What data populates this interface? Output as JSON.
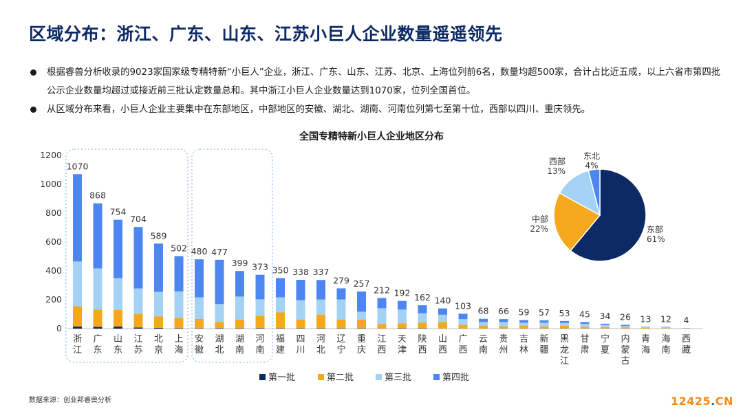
{
  "title": "区域分布：浙江、广东、山东、江苏小巨人企业数量遥遥领先",
  "bullets": [
    "根据睿兽分析收录的9023家国家级专精特新“小巨人”企业，浙江、广东、山东、江苏、北京、上海位列前6名，数量均超500家，合计占比近五成，以上六省市第四批公示企业数量均超过或接近前三批认定数量总和。其中浙江小巨人企业数量达到1070家，位列全国首位。",
    "从区域分布来看，小巨人企业主要集中在东部地区，中部地区的安徽、湖北、湖南、河南位列第七至第十位，西部以四川、重庆领先。"
  ],
  "source": "数据来源：创业邦睿兽分析",
  "watermark": {
    "num": "12425",
    "dot": ".",
    "tld": "CN"
  },
  "chart_data": [
    {
      "type": "bar",
      "stacked": true,
      "title": "全国专精特新小巨人企业地区分布",
      "categories": [
        "浙江",
        "广东",
        "山东",
        "江苏",
        "北京",
        "上海",
        "安徽",
        "湖北",
        "湖南",
        "河南",
        "福建",
        "四川",
        "河北",
        "辽宁",
        "重庆",
        "江西",
        "天津",
        "陕西",
        "山西",
        "广西",
        "云南",
        "贵州",
        "吉林",
        "新疆",
        "黑龙江",
        "甘肃",
        "宁夏",
        "内蒙古",
        "青海",
        "海南",
        "西藏"
      ],
      "totals": [
        1070,
        868,
        754,
        704,
        589,
        502,
        480,
        477,
        399,
        373,
        350,
        338,
        337,
        279,
        257,
        212,
        192,
        162,
        140,
        103,
        68,
        66,
        59,
        57,
        53,
        45,
        34,
        26,
        13,
        12,
        4
      ],
      "series": [
        {
          "name": "第一批",
          "color": "#0d2a66",
          "values": [
            15,
            12,
            15,
            8,
            5,
            3,
            2,
            3,
            2,
            3,
            2,
            2,
            2,
            2,
            2,
            1,
            2,
            2,
            1,
            1,
            1,
            1,
            1,
            1,
            1,
            1,
            1,
            1,
            0,
            0,
            0
          ]
        },
        {
          "name": "第二批",
          "color": "#f5a81c",
          "values": [
            140,
            120,
            115,
            95,
            80,
            70,
            65,
            42,
            60,
            85,
            110,
            60,
            95,
            60,
            60,
            30,
            35,
            40,
            45,
            25,
            20,
            15,
            20,
            15,
            18,
            12,
            10,
            8,
            5,
            4,
            2
          ]
        },
        {
          "name": "第三批",
          "color": "#a3d2f5",
          "values": [
            310,
            285,
            220,
            175,
            170,
            185,
            150,
            125,
            160,
            115,
            105,
            135,
            105,
            140,
            55,
            110,
            95,
            65,
            50,
            40,
            25,
            30,
            20,
            25,
            21,
            20,
            15,
            10,
            5,
            5,
            1
          ]
        },
        {
          "name": "第四批",
          "color": "#4d86f0",
          "values": [
            605,
            451,
            404,
            426,
            334,
            244,
            263,
            307,
            177,
            170,
            133,
            141,
            135,
            77,
            140,
            71,
            60,
            55,
            44,
            37,
            22,
            20,
            18,
            16,
            13,
            12,
            8,
            7,
            3,
            3,
            1
          ]
        }
      ],
      "ylim": [
        0,
        1200
      ],
      "yticks": [
        0,
        200,
        400,
        600,
        800,
        1000,
        1200
      ],
      "legend_position": "bottom",
      "grid": false
    },
    {
      "type": "pie",
      "labels": [
        "东部",
        "中部",
        "西部",
        "东北"
      ],
      "values": [
        61,
        22,
        13,
        4
      ],
      "value_labels": [
        "61%",
        "22%",
        "13%",
        "4%"
      ],
      "colors": [
        "#0d2a66",
        "#f5a81c",
        "#a3d2f5",
        "#4d86f0"
      ]
    }
  ]
}
